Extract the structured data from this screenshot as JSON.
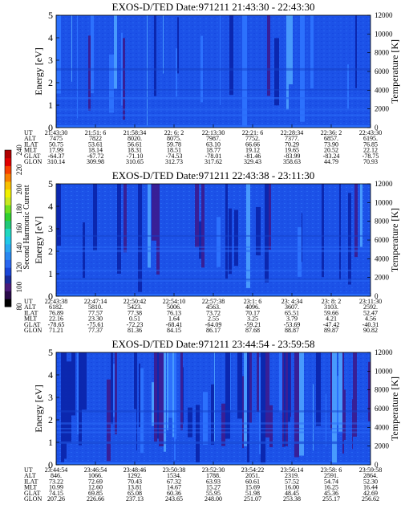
{
  "figure": {
    "colorbar": {
      "title": "Second Harmonic Current",
      "ticks": [
        "80",
        "100",
        "120",
        "140",
        "160",
        "180",
        "200",
        "220",
        "240"
      ],
      "colors": [
        "#000000",
        "#2a0a4a",
        "#4a1a7a",
        "#1a2a9a",
        "#1a46d8",
        "#2a66f0",
        "#2a88f0",
        "#2aa8f0",
        "#20c8e8",
        "#20d8c0",
        "#20c878",
        "#30d030",
        "#70e020",
        "#c8e820",
        "#f0f000",
        "#f8c000",
        "#f88000",
        "#f84000",
        "#e00000",
        "#b00000"
      ]
    }
  },
  "chart_data": [
    {
      "type": "heatmap",
      "title": "EXOS-D/TED   Date:971211  21:43:30 - 22:43:30",
      "ylabel": "Energy [eV]",
      "ylabel_right": "Temperature [K]",
      "ylim": [
        0,
        5
      ],
      "ylim_right": [
        0,
        12000
      ],
      "yticks": [
        "0",
        "1",
        "2",
        "3",
        "4",
        "5"
      ],
      "yticks_right": [
        "0",
        "2000",
        "4000",
        "6000",
        "8000",
        "10000",
        "12000"
      ],
      "row_labels": [
        "UT",
        "ALT",
        "ILAT",
        "MLT",
        "GLAT",
        "GLON"
      ],
      "columns": [
        [
          "21:43:30",
          "7475",
          "50.75",
          "17.99",
          "-64.37",
          "310.14"
        ],
        [
          "21:51: 6",
          "7822",
          "53.61",
          "18.14",
          "-67.72",
          "309.98"
        ],
        [
          "21:58:34",
          "8020.",
          "56.61",
          "18.31",
          "-71.10",
          "310.65"
        ],
        [
          "22: 6: 2",
          "8075.",
          "59.78",
          "18.51",
          "-74.53",
          "312.73"
        ],
        [
          "22:13:30",
          "7987.",
          "63.10",
          "18.77",
          "-78.01",
          "317.62"
        ],
        [
          "22:21: 6",
          "7752.",
          "66.66",
          "19.12",
          "-81.46",
          "329.43"
        ],
        [
          "22:28:34",
          "7377.",
          "70.29",
          "19.65",
          "-83.99",
          "358.63"
        ],
        [
          "22:36: 2",
          "6857.",
          "73.90",
          "20.52",
          "-83.24",
          "44.79"
        ],
        [
          "22:43:30",
          "6195.",
          "76.85",
          "22.12",
          "-78.75",
          "70.93"
        ]
      ]
    },
    {
      "type": "heatmap",
      "title": "EXOS-D/TED   Date:971211  22:43:38 - 23:11:30",
      "ylabel": "Energy [eV]",
      "ylabel_right": "Temperature [K]",
      "ylim": [
        0,
        5
      ],
      "ylim_right": [
        0,
        12000
      ],
      "yticks": [
        "0",
        "1",
        "2",
        "3",
        "4",
        "5"
      ],
      "yticks_right": [
        "0",
        "2000",
        "4000",
        "6000",
        "8000",
        "10000",
        "12000"
      ],
      "row_labels": [
        "UT",
        "ALT",
        "ILAT",
        "MLT",
        "GLAT",
        "GLON"
      ],
      "columns": [
        [
          "22:43:38",
          "6182.",
          "76.89",
          "22.16",
          "-78.65",
          "71.21"
        ],
        [
          "22:47:14",
          "5810.",
          "77.57",
          "23.30",
          "-75.61",
          "77.37"
        ],
        [
          "22:50:42",
          "5423.",
          "77.38",
          "0.51",
          "-72.23",
          "81.36"
        ],
        [
          "22:54:10",
          "5006.",
          "76.13",
          "1.64",
          "-68.41",
          "84.15"
        ],
        [
          "22:57:38",
          "4563.",
          "73.72",
          "2.55",
          "-64.09",
          "86.17"
        ],
        [
          "23:1: 6",
          "4096.",
          "70.17",
          "3.25",
          "-59.21",
          "87.68"
        ],
        [
          "23: 4:34",
          "3607.",
          "65.51",
          "3.79",
          "-53.69",
          "88.87"
        ],
        [
          "23: 8: 2",
          "3103.",
          "59.66",
          "4.21",
          "-47.42",
          "89.87"
        ],
        [
          "23:11:30",
          "2592.",
          "52.47",
          "4.56",
          "-40.31",
          "90.82"
        ]
      ]
    },
    {
      "type": "heatmap",
      "title": "EXOS-D/TED   Date:971211  23:44:54 - 23:59:58",
      "ylabel": "Energy [eV]",
      "ylabel_right": "Temperature [K]",
      "ylim": [
        0,
        5
      ],
      "ylim_right": [
        0,
        12000
      ],
      "yticks": [
        "0",
        "1",
        "2",
        "3",
        "4",
        "5"
      ],
      "yticks_right": [
        "0",
        "2000",
        "4000",
        "6000",
        "8000",
        "10000",
        "12000"
      ],
      "row_labels": [
        "UT",
        "ALT",
        "ILAT",
        "MLT",
        "GLAT",
        "GLON"
      ],
      "columns": [
        [
          "23:44:54",
          "846.",
          "73.22",
          "10.99",
          "74.15",
          "207.26"
        ],
        [
          "23:46:54",
          "1066.",
          "72.69",
          "12.60",
          "69.85",
          "226.66"
        ],
        [
          "23:48:46",
          "1292.",
          "70.43",
          "13.81",
          "65.08",
          "237.13"
        ],
        [
          "23:50:38",
          "1534.",
          "67.32",
          "14.67",
          "60.36",
          "243.65"
        ],
        [
          "23:52:30",
          "1788.",
          "63.93",
          "15.27",
          "55.95",
          "248.00"
        ],
        [
          "23:54:22",
          "2051.",
          "60.61",
          "15.69",
          "51.98",
          "251.07"
        ],
        [
          "23:56:14",
          "2319.",
          "57.52",
          "16.00",
          "48.45",
          "253.38"
        ],
        [
          "23:58: 6",
          "2591.",
          "54.74",
          "16.25",
          "45.36",
          "255.17"
        ],
        [
          "23:59:58",
          "2864.",
          "52.30",
          "16.44",
          "42.69",
          "256.62"
        ]
      ]
    }
  ]
}
